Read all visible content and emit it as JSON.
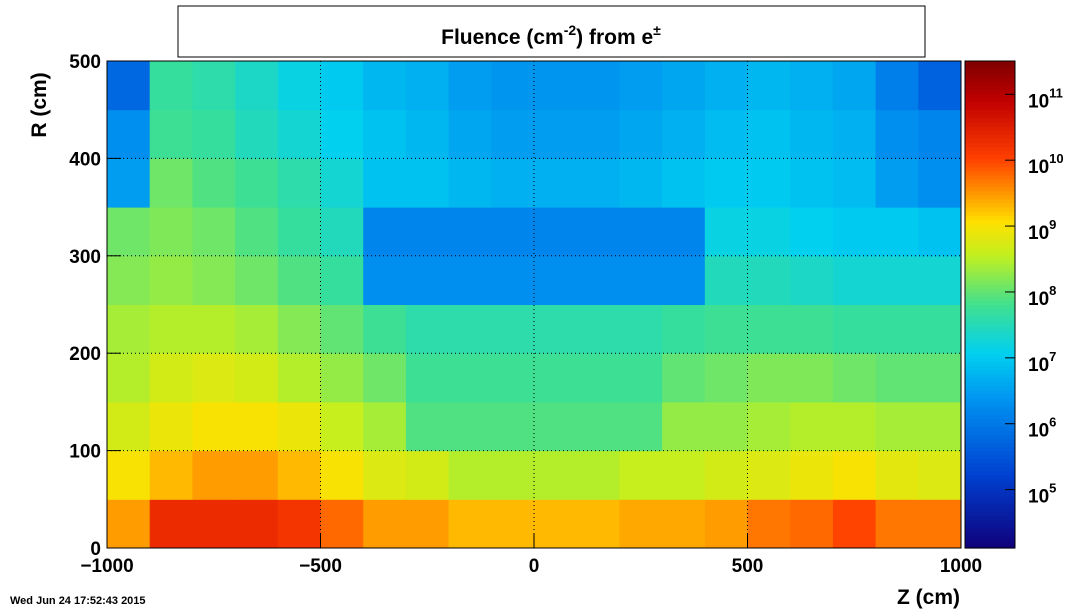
{
  "chart_data": {
    "type": "heatmap",
    "title": [
      {
        "text": "Fluence (cm"
      },
      {
        "text": "-2",
        "sup": true
      },
      {
        "text": ") from   e"
      },
      {
        "text": "±",
        "sup": true
      }
    ],
    "x_label": "Z (cm)",
    "y_label": "R (cm)",
    "timestamp": "Wed Jun 24 17:52:43 2015",
    "xlim": [
      -1000,
      1000
    ],
    "ylim": [
      0,
      500
    ],
    "xticks": [
      {
        "value": -1000,
        "label": "−1000"
      },
      {
        "value": -500,
        "label": "−500"
      },
      0,
      500,
      1000
    ],
    "yticks": [
      0,
      100,
      200,
      300,
      400,
      500
    ],
    "grid": true,
    "zlim": [
      13000,
      320000000000
    ],
    "zlog": true,
    "zticks": [
      {
        "value": 100000,
        "label": "10",
        "exponent": "5"
      },
      {
        "value": 1000000,
        "label": "10",
        "exponent": "6"
      },
      {
        "value": 10000000,
        "label": "10",
        "exponent": "7"
      },
      {
        "value": 100000000,
        "label": "10",
        "exponent": "8"
      },
      {
        "value": 1000000000,
        "label": "10",
        "exponent": "9"
      },
      {
        "value": 10000000000,
        "label": "10",
        "exponent": "10"
      },
      {
        "value": 100000000000,
        "label": "10",
        "exponent": "11"
      }
    ],
    "colormap": [
      [
        0,
        "#10007a"
      ],
      [
        0.15,
        "#0040d0"
      ],
      [
        0.3,
        "#0090f0"
      ],
      [
        0.4,
        "#00d0f0"
      ],
      [
        0.5,
        "#40e090"
      ],
      [
        0.6,
        "#c0f020"
      ],
      [
        0.67,
        "#ffe000"
      ],
      [
        0.8,
        "#ff4000"
      ],
      [
        0.92,
        "#c00000"
      ],
      [
        1,
        "#800000"
      ]
    ],
    "x_bins": [
      -1000,
      -900,
      -800,
      -700,
      -600,
      -500,
      -400,
      -300,
      -200,
      -100,
      0,
      100,
      200,
      300,
      400,
      500,
      600,
      700,
      800,
      900,
      1000
    ],
    "y_bins": [
      0,
      50,
      100,
      150,
      200,
      250,
      300,
      350,
      400,
      450,
      500
    ],
    "z": [
      [
        3000000000.0,
        20000000000.0,
        20000000000.0,
        20000000000.0,
        15000000000.0,
        6000000000.0,
        3000000000.0,
        3000000000.0,
        2000000000.0,
        2000000000.0,
        2000000000.0,
        2000000000.0,
        2500000000.0,
        2500000000.0,
        3000000000.0,
        5000000000.0,
        6000000000.0,
        10000000000.0,
        5000000000.0,
        5000000000.0
      ],
      [
        1000000000.0,
        2000000000.0,
        3000000000.0,
        3000000000.0,
        2000000000.0,
        1000000000.0,
        600000000.0,
        500000000.0,
        300000000.0,
        300000000.0,
        300000000.0,
        300000000.0,
        400000000.0,
        400000000.0,
        500000000.0,
        600000000.0,
        800000000.0,
        1000000000.0,
        700000000.0,
        600000000.0
      ],
      [
        500000000.0,
        800000000.0,
        1000000000.0,
        1000000000.0,
        800000000.0,
        400000000.0,
        250000000.0,
        80000000.0,
        80000000.0,
        80000000.0,
        80000000.0,
        80000000.0,
        80000000.0,
        200000000.0,
        200000000.0,
        250000000.0,
        300000000.0,
        300000000.0,
        250000000.0,
        250000000.0
      ],
      [
        300000000.0,
        500000000.0,
        600000000.0,
        500000000.0,
        300000000.0,
        200000000.0,
        120000000.0,
        60000000.0,
        60000000.0,
        60000000.0,
        60000000.0,
        60000000.0,
        60000000.0,
        100000000.0,
        120000000.0,
        150000000.0,
        150000000.0,
        120000000.0,
        100000000.0,
        100000000.0
      ],
      [
        250000000.0,
        300000000.0,
        300000000.0,
        250000000.0,
        160000000.0,
        100000000.0,
        60000000.0,
        40000000.0,
        40000000.0,
        40000000.0,
        40000000.0,
        40000000.0,
        40000000.0,
        50000000.0,
        60000000.0,
        60000000.0,
        60000000.0,
        50000000.0,
        50000000.0,
        50000000.0
      ],
      [
        160000000.0,
        200000000.0,
        160000000.0,
        120000000.0,
        80000000.0,
        50000000.0,
        2000000.0,
        2000000.0,
        2000000.0,
        2000000.0,
        2000000.0,
        2000000.0,
        2000000.0,
        2000000.0,
        30000000.0,
        30000000.0,
        25000000.0,
        20000000.0,
        20000000.0,
        20000000.0
      ],
      [
        120000000.0,
        150000000.0,
        120000000.0,
        80000000.0,
        50000000.0,
        30000000.0,
        1500000.0,
        1500000.0,
        1500000.0,
        1500000.0,
        1500000.0,
        1500000.0,
        1500000.0,
        1500000.0,
        15000000.0,
        15000000.0,
        12000000.0,
        10000000.0,
        10000000.0,
        8000000.0
      ],
      [
        3000000.0,
        120000000.0,
        80000000.0,
        60000000.0,
        40000000.0,
        20000000.0,
        8000000.0,
        8000000.0,
        6000000.0,
        5000000.0,
        5000000.0,
        5000000.0,
        6000000.0,
        8000000.0,
        10000000.0,
        10000000.0,
        8000000.0,
        7000000.0,
        3000000.0,
        2000000.0
      ],
      [
        2000000.0,
        60000000.0,
        50000000.0,
        30000000.0,
        20000000.0,
        12000000.0,
        8000000.0,
        6000000.0,
        4000000.0,
        3000000.0,
        3000000.0,
        3000000.0,
        4000000.0,
        5000000.0,
        7000000.0,
        8000000.0,
        6000000.0,
        5000000.0,
        2000000.0,
        1500000.0
      ],
      [
        600000.0,
        50000000.0,
        40000000.0,
        25000000.0,
        15000000.0,
        10000000.0,
        6000000.0,
        5000000.0,
        3000000.0,
        2500000.0,
        2500000.0,
        2500000.0,
        3000000.0,
        4000000.0,
        5000000.0,
        6000000.0,
        5000000.0,
        4000000.0,
        1200000.0,
        500000.0
      ]
    ]
  }
}
